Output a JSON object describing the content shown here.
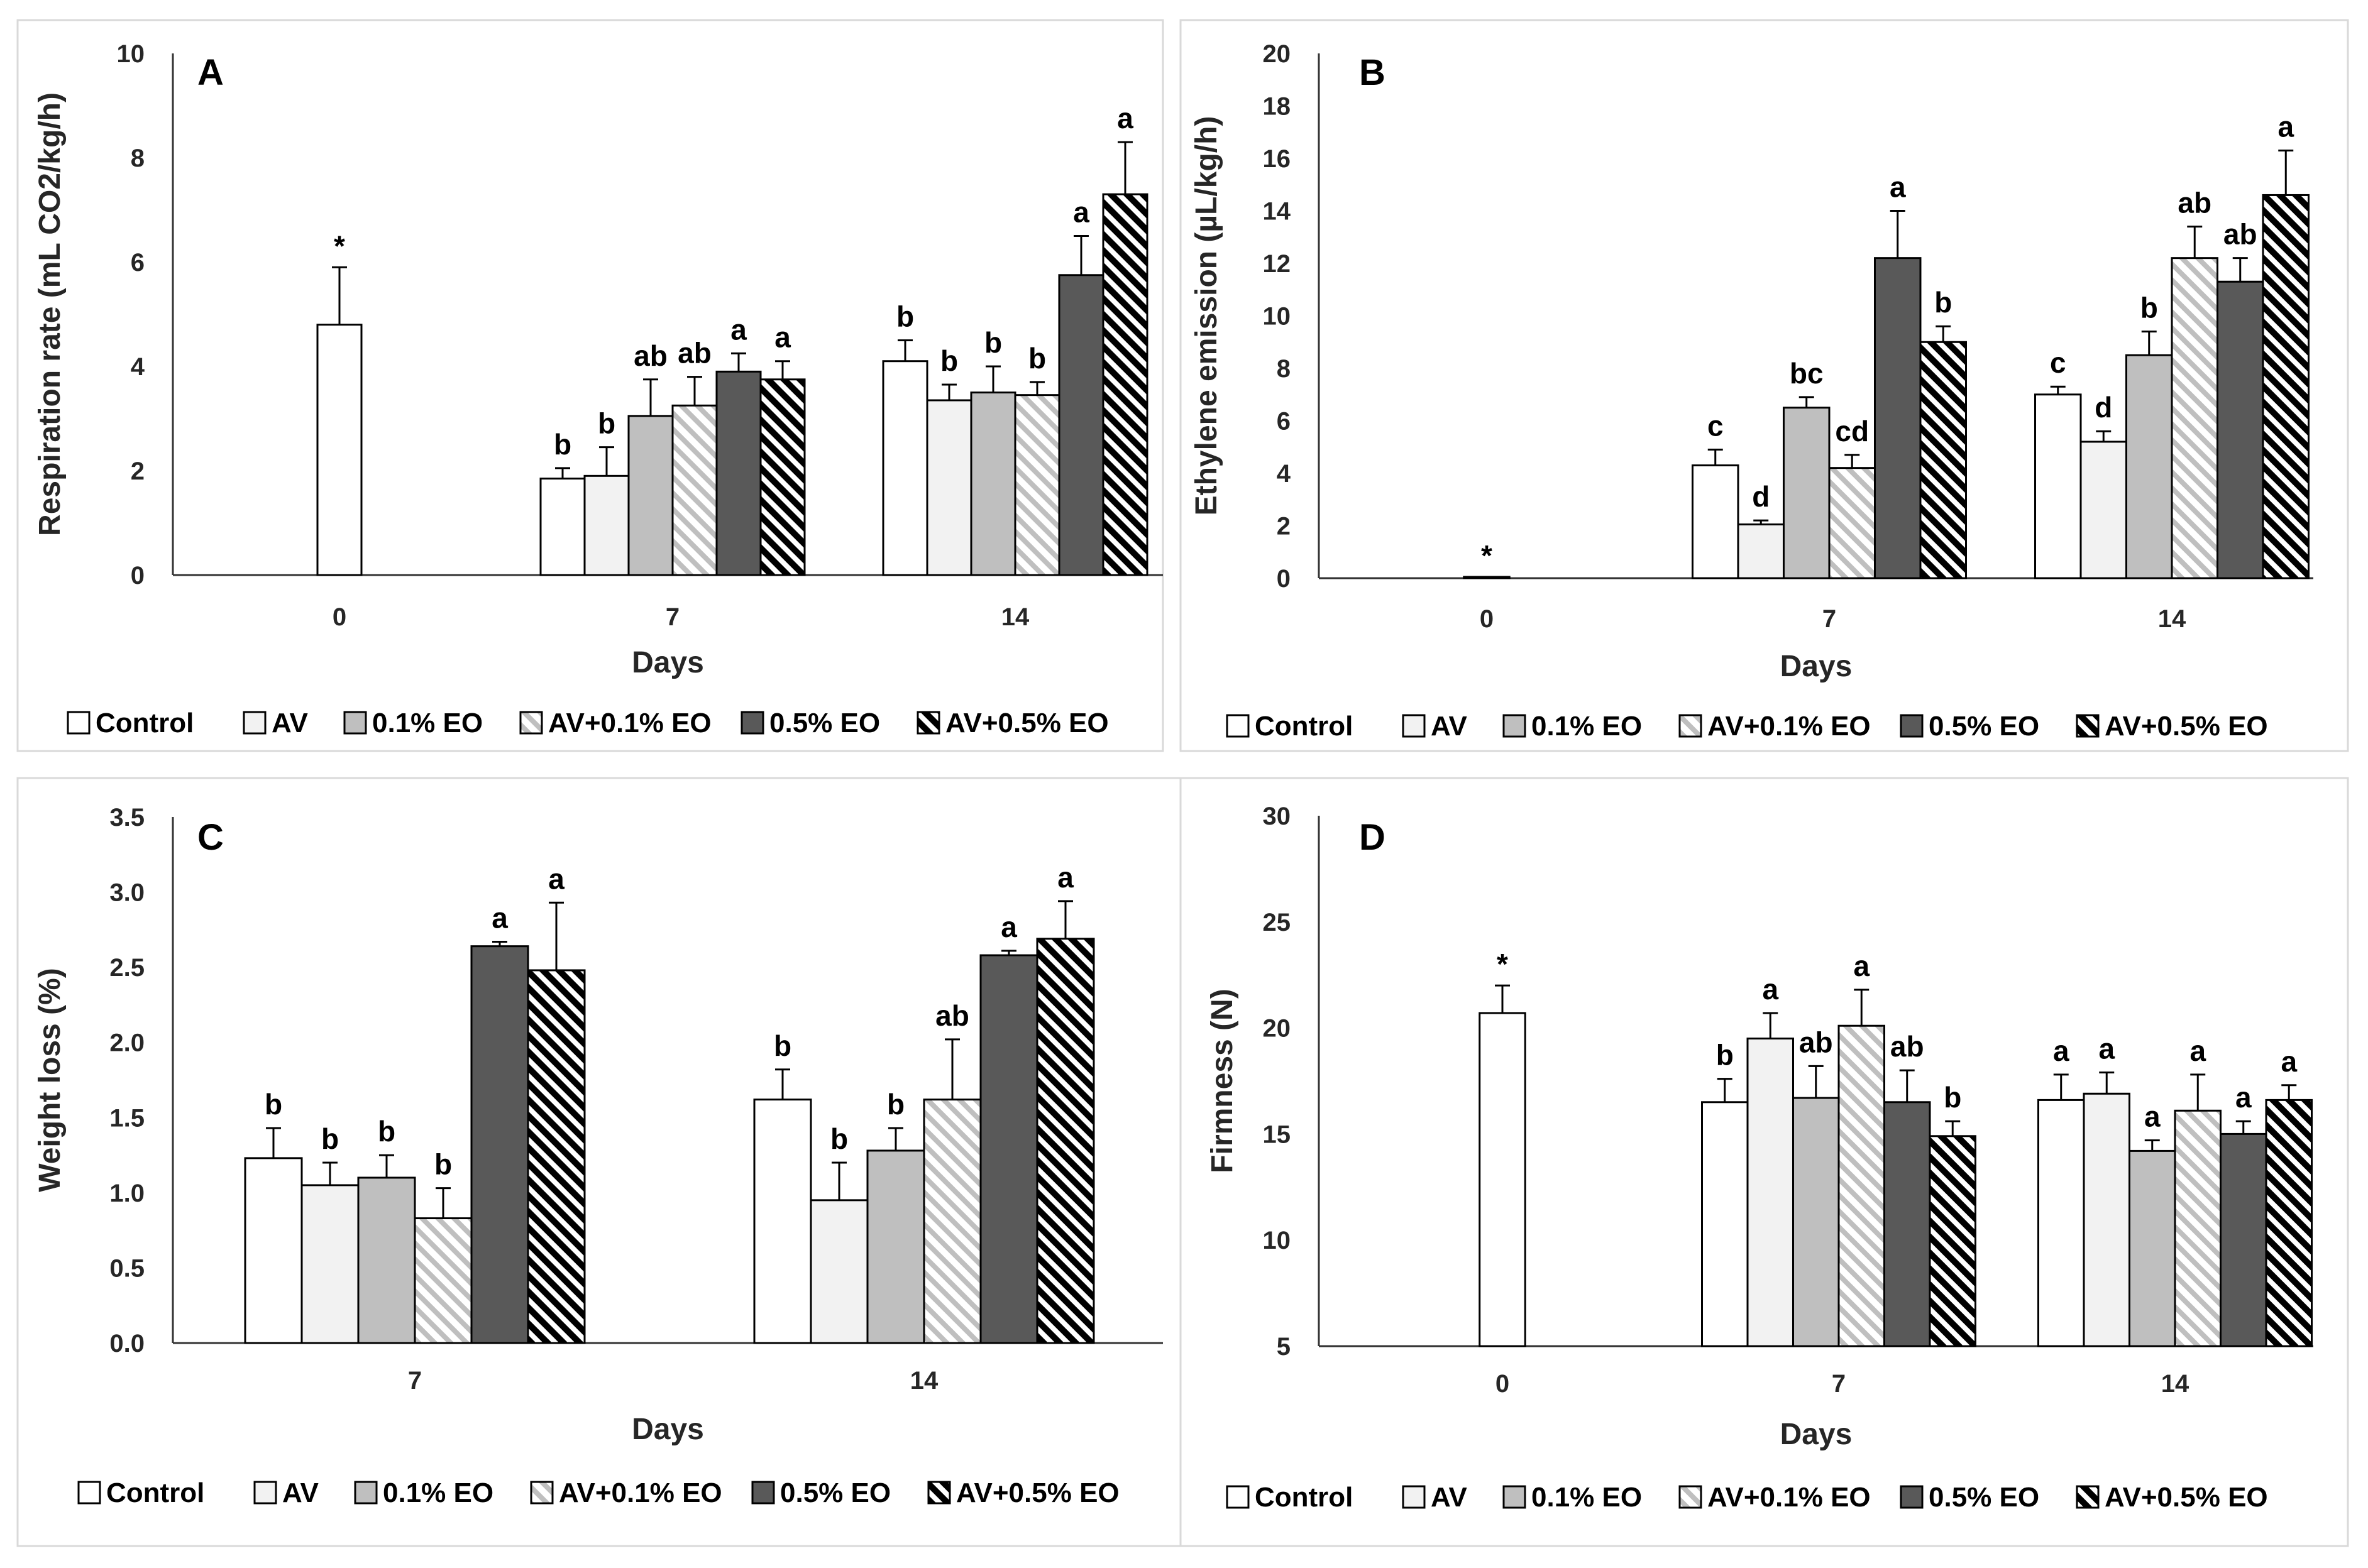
{
  "styles": {
    "Control": {
      "fill": "#ffffff"
    },
    "AV": {
      "fill": "#f2f2f2"
    },
    "0.1% EO": {
      "fill": "#bfbfbf"
    },
    "AV+0.1% EO": {
      "fill": "url(#hatchLight)"
    },
    "0.5% EO": {
      "fill": "#595959"
    },
    "AV+0.5% EO": {
      "fill": "url(#hatchDark)"
    }
  },
  "chart_data": [
    {
      "type": "bar",
      "panel": "A",
      "ylabel": "Respiration rate (mL CO2/kg/h)",
      "xlabel": "Days",
      "ylim": [
        0,
        10
      ],
      "yticks": [
        0,
        2,
        4,
        6,
        8,
        10
      ],
      "ytick_labels": [
        "0",
        "2",
        "4",
        "6",
        "8",
        "10"
      ],
      "categories": [
        "0",
        "7",
        "14"
      ],
      "legend": [
        "Control",
        "AV",
        "0.1% EO",
        "AV+0.1% EO",
        "0.5% EO",
        "AV+0.5% EO"
      ],
      "series": [
        {
          "name": "Control",
          "values": [
            4.8,
            1.85,
            4.1
          ],
          "errors": [
            1.1,
            0.2,
            0.4
          ],
          "labels": [
            "*",
            "b",
            "b"
          ]
        },
        {
          "name": "AV",
          "values": [
            null,
            1.9,
            3.35
          ],
          "errors": [
            null,
            0.55,
            0.3
          ],
          "labels": [
            "",
            "b",
            "b"
          ]
        },
        {
          "name": "0.1% EO",
          "values": [
            null,
            3.05,
            3.5
          ],
          "errors": [
            null,
            0.7,
            0.5
          ],
          "labels": [
            "",
            "ab",
            "b"
          ]
        },
        {
          "name": "AV+0.1% EO",
          "values": [
            null,
            3.25,
            3.45
          ],
          "errors": [
            null,
            0.55,
            0.25
          ],
          "labels": [
            "",
            "ab",
            "b"
          ]
        },
        {
          "name": "0.5% EO",
          "values": [
            null,
            3.9,
            5.75
          ],
          "errors": [
            null,
            0.35,
            0.75
          ],
          "labels": [
            "",
            "a",
            "a"
          ]
        },
        {
          "name": "AV+0.5% EO",
          "values": [
            null,
            3.75,
            7.3
          ],
          "errors": [
            null,
            0.35,
            1.0
          ],
          "labels": [
            "",
            "a",
            "a"
          ]
        }
      ]
    },
    {
      "type": "bar",
      "panel": "B",
      "ylabel": "Ethylene emission (µL/kg/h)",
      "xlabel": "Days",
      "ylim": [
        0,
        20
      ],
      "yticks": [
        0,
        2,
        4,
        6,
        8,
        10,
        12,
        14,
        16,
        18,
        20
      ],
      "ytick_labels": [
        "0",
        "2",
        "4",
        "6",
        "8",
        "10",
        "12",
        "14",
        "16",
        "18",
        "20"
      ],
      "categories": [
        "0",
        "7",
        "14"
      ],
      "legend": [
        "Control",
        "AV",
        "0.1% EO",
        "AV+0.1% EO",
        "0.5% EO",
        "AV+0.5% EO"
      ],
      "series": [
        {
          "name": "Control",
          "values": [
            0.05,
            4.3,
            7.0
          ],
          "errors": [
            0,
            0.6,
            0.3
          ],
          "labels": [
            "*",
            "c",
            "c"
          ]
        },
        {
          "name": "AV",
          "values": [
            null,
            2.05,
            5.2
          ],
          "errors": [
            null,
            0.15,
            0.4
          ],
          "labels": [
            "",
            "d",
            "d"
          ]
        },
        {
          "name": "0.1% EO",
          "values": [
            null,
            6.5,
            8.5
          ],
          "errors": [
            null,
            0.4,
            0.9
          ],
          "labels": [
            "",
            "bc",
            "b"
          ]
        },
        {
          "name": "AV+0.1% EO",
          "values": [
            null,
            4.2,
            12.2
          ],
          "errors": [
            null,
            0.5,
            1.2
          ],
          "labels": [
            "",
            "cd",
            "ab"
          ]
        },
        {
          "name": "0.5% EO",
          "values": [
            null,
            12.2,
            11.3
          ],
          "errors": [
            null,
            1.8,
            0.9
          ],
          "labels": [
            "",
            "a",
            "ab"
          ]
        },
        {
          "name": "AV+0.5% EO",
          "values": [
            null,
            9.0,
            14.6
          ],
          "errors": [
            null,
            0.6,
            1.7
          ],
          "labels": [
            "",
            "b",
            "a"
          ]
        }
      ]
    },
    {
      "type": "bar",
      "panel": "C",
      "ylabel": "Weight loss (%)",
      "xlabel": "Days",
      "ylim": [
        0,
        3.5
      ],
      "yticks": [
        0,
        0.5,
        1.0,
        1.5,
        2.0,
        2.5,
        3.0,
        3.5
      ],
      "ytick_labels": [
        "0.0",
        "0.5",
        "1.0",
        "1.5",
        "2.0",
        "2.5",
        "3.0",
        "3.5"
      ],
      "categories": [
        "7",
        "14"
      ],
      "legend": [
        "Control",
        "AV",
        "0.1% EO",
        "AV+0.1% EO",
        "0.5% EO",
        "AV+0.5% EO"
      ],
      "series": [
        {
          "name": "Control",
          "values": [
            1.23,
            1.62
          ],
          "errors": [
            0.2,
            0.2
          ],
          "labels": [
            "b",
            "b"
          ]
        },
        {
          "name": "AV",
          "values": [
            1.05,
            0.95
          ],
          "errors": [
            0.15,
            0.25
          ],
          "labels": [
            "b",
            "b"
          ]
        },
        {
          "name": "0.1% EO",
          "values": [
            1.1,
            1.28
          ],
          "errors": [
            0.15,
            0.15
          ],
          "labels": [
            "b",
            "b"
          ]
        },
        {
          "name": "AV+0.1% EO",
          "values": [
            0.83,
            1.62
          ],
          "errors": [
            0.2,
            0.4
          ],
          "labels": [
            "b",
            "ab"
          ]
        },
        {
          "name": "0.5% EO",
          "values": [
            2.64,
            2.58
          ],
          "errors": [
            0.03,
            0.03
          ],
          "labels": [
            "a",
            "a"
          ]
        },
        {
          "name": "AV+0.5% EO",
          "values": [
            2.48,
            2.69
          ],
          "errors": [
            0.45,
            0.25
          ],
          "labels": [
            "a",
            "a"
          ]
        }
      ]
    },
    {
      "type": "bar",
      "panel": "D",
      "ylabel": "Firmness (N)",
      "xlabel": "Days",
      "ylim": [
        5,
        30
      ],
      "yticks": [
        5,
        10,
        15,
        20,
        25,
        30
      ],
      "ytick_labels": [
        "5",
        "10",
        "15",
        "20",
        "25",
        "30"
      ],
      "categories": [
        "0",
        "7",
        "14"
      ],
      "legend": [
        "Control",
        "AV",
        "0.1% EO",
        "AV+0.1% EO",
        "0.5% EO",
        "AV+0.5% EO"
      ],
      "series": [
        {
          "name": "Control",
          "values": [
            20.7,
            16.5,
            16.6
          ],
          "errors": [
            1.3,
            1.1,
            1.2
          ],
          "labels": [
            "*",
            "b",
            "a"
          ]
        },
        {
          "name": "AV",
          "values": [
            null,
            19.5,
            16.9
          ],
          "errors": [
            null,
            1.2,
            1.0
          ],
          "labels": [
            "",
            "a",
            "a"
          ]
        },
        {
          "name": "0.1% EO",
          "values": [
            null,
            16.7,
            14.2
          ],
          "errors": [
            null,
            1.5,
            0.5
          ],
          "labels": [
            "",
            "ab",
            "a"
          ]
        },
        {
          "name": "AV+0.1% EO",
          "values": [
            null,
            20.1,
            16.1
          ],
          "errors": [
            null,
            1.7,
            1.7
          ],
          "labels": [
            "",
            "a",
            "a"
          ]
        },
        {
          "name": "0.5% EO",
          "values": [
            null,
            16.5,
            15.0
          ],
          "errors": [
            null,
            1.5,
            0.6
          ],
          "labels": [
            "",
            "ab",
            "a"
          ]
        },
        {
          "name": "AV+0.5% EO",
          "values": [
            null,
            14.9,
            16.6
          ],
          "errors": [
            null,
            0.7,
            0.7
          ],
          "labels": [
            "",
            "b",
            "a"
          ]
        }
      ]
    }
  ]
}
